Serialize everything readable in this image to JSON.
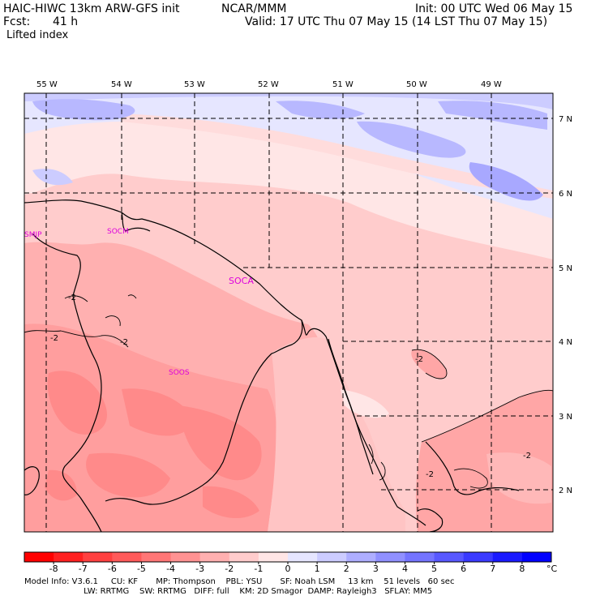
{
  "header": {
    "model_line": "HAIC-HIWC 13km ARW-GFS init",
    "org": "NCAR/MMM",
    "fcst_label": "Fcst:",
    "fcst_value": "41 h",
    "init_line": "Init: 00 UTC Wed 06 May 15",
    "valid_line": "Valid: 17 UTC Thu 07 May 15 (14 LST Thu 07 May 15)",
    "field_name": "Lifted index"
  },
  "map": {
    "lon_labels": [
      "55 W",
      "54 W",
      "53 W",
      "52 W",
      "51 W",
      "50 W",
      "49 W"
    ],
    "lat_labels": [
      "7 N",
      "6 N",
      "5 N",
      "4 N",
      "3 N",
      "2 N"
    ],
    "stations": [
      "SMJP",
      "SOCM",
      "SOCA",
      "SOOS"
    ],
    "contour_labels": [
      "-2",
      "-2",
      "-2",
      "-2",
      "-2",
      "-2",
      "-2"
    ]
  },
  "colorbar": {
    "ticks": [
      "-8",
      "-7",
      "-6",
      "-5",
      "-4",
      "-3",
      "-2",
      "-1",
      "0",
      "1",
      "2",
      "3",
      "4",
      "5",
      "6",
      "7",
      "8"
    ],
    "unit": "°C",
    "colors": [
      "#ff0000",
      "#ff2020",
      "#ff4040",
      "#ff5a5a",
      "#ff7676",
      "#ff9292",
      "#ffb0b0",
      "#ffcccc",
      "#ffe6e6",
      "#e6e6ff",
      "#ccccff",
      "#aeaeff",
      "#9090ff",
      "#7474ff",
      "#5858ff",
      "#3a3aff",
      "#1a1aff",
      "#0000ff"
    ]
  },
  "model_info": {
    "line1": "Model Info: V3.6.1     CU: KF       MP: Thompson    PBL: YSU       SF: Noah LSM     13 km    51 levels   60 sec",
    "line2": "                       LW: RRTMG    SW: RRTMG   DIFF: full    KM: 2D Smagor  DAMP: Rayleigh3   SFLAY: MM5"
  }
}
